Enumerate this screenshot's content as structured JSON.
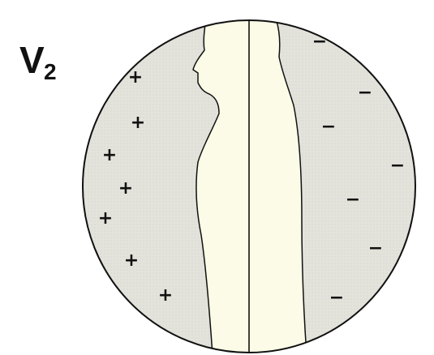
{
  "title": {
    "main": "V",
    "subscript": "2"
  },
  "signs": {
    "positive": [
      "+",
      "+",
      "+",
      "+",
      "+",
      "+",
      "+"
    ],
    "negative": [
      "−",
      "−",
      "−",
      "−",
      "−",
      "−",
      "−"
    ]
  },
  "colors": {
    "field_fill": "#e3e3dc",
    "body_fill": "#fbfbe7",
    "outline": "#111111"
  }
}
